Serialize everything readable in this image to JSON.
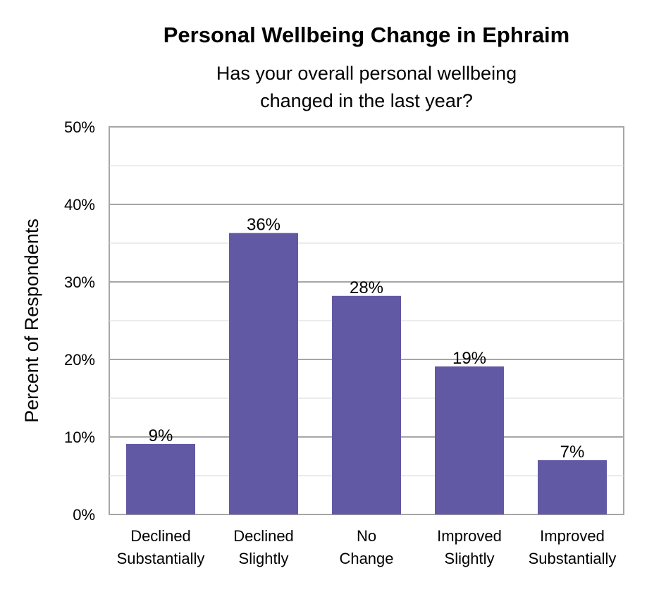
{
  "chart_data": {
    "type": "bar",
    "title": "Personal Wellbeing Change in Ephraim",
    "subtitle": [
      "Has your overall personal wellbeing",
      "changed in the last year?"
    ],
    "ylabel": "Percent of Respondents",
    "xlabel": "",
    "categories": [
      [
        "Declined",
        "Substantially"
      ],
      [
        "Declined",
        "Slightly"
      ],
      [
        "No",
        "Change"
      ],
      [
        "Improved",
        "Slightly"
      ],
      [
        "Improved",
        "Substantially"
      ]
    ],
    "values": [
      9.1,
      36.3,
      28.2,
      19.1,
      7.0
    ],
    "data_labels": [
      "9%",
      "36%",
      "28%",
      "19%",
      "7%"
    ],
    "ylim": [
      0,
      50
    ],
    "yticks": [
      0,
      10,
      20,
      30,
      40,
      50
    ],
    "ytick_labels": [
      "0%",
      "10%",
      "20%",
      "30%",
      "40%",
      "50%"
    ],
    "bar_color": "#6159a3",
    "grid": true,
    "legend": "none"
  }
}
